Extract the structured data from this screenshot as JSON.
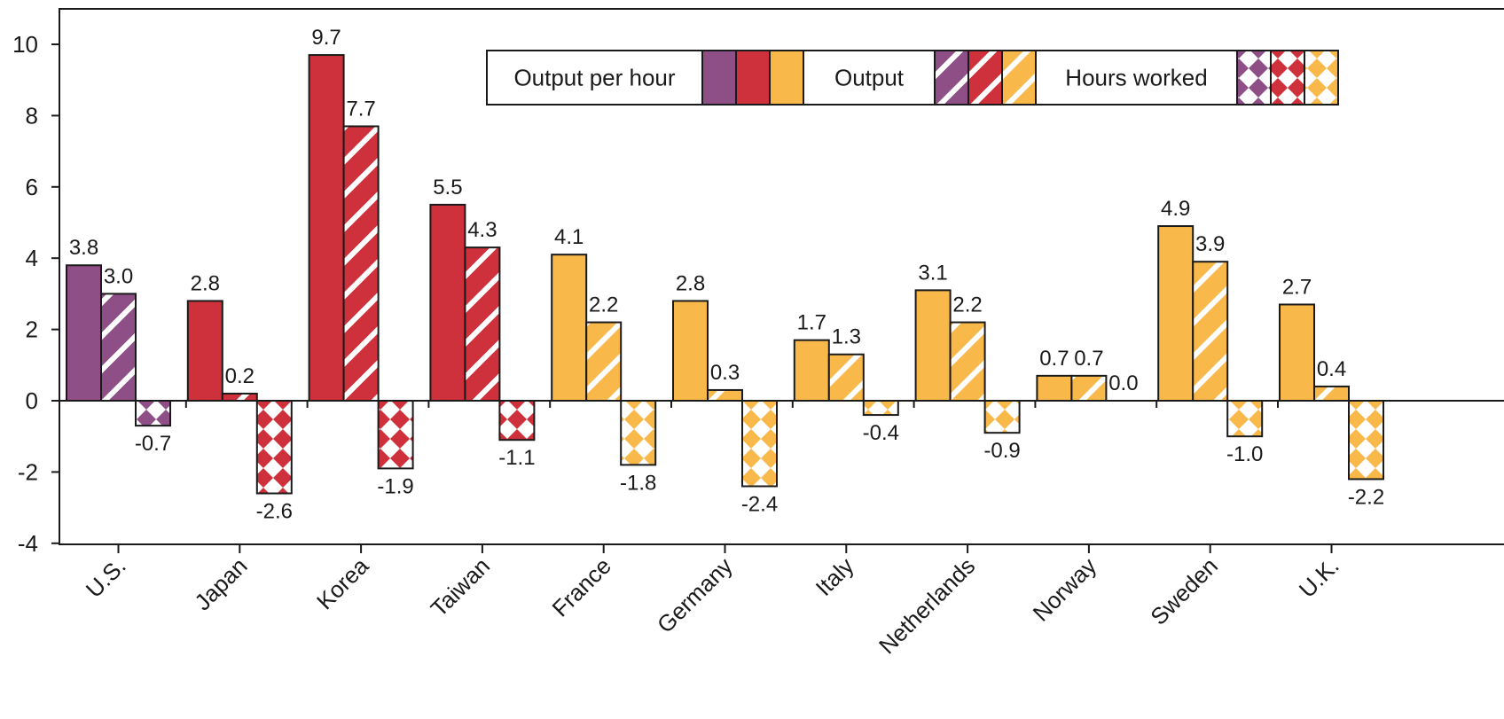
{
  "chart_data": {
    "type": "bar",
    "title": "",
    "xlabel": "",
    "ylabel": "",
    "ylim": [
      -4,
      10
    ],
    "yticks": [
      -4,
      -2,
      0,
      2,
      4,
      6,
      8,
      10
    ],
    "grid": false,
    "legend_position": "top-right",
    "categories": [
      "U.S.",
      "Japan",
      "Korea",
      "Taiwan",
      "France",
      "Germany",
      "Italy",
      "Netherlands",
      "Norway",
      "Sweden",
      "U.K."
    ],
    "category_colors": [
      "#8e4f86",
      "#cf313c",
      "#cf313c",
      "#cf313c",
      "#f9b84a",
      "#f9b84a",
      "#f9b84a",
      "#f9b84a",
      "#f9b84a",
      "#f9b84a",
      "#f9b84a"
    ],
    "series": [
      {
        "name": "Output per hour",
        "pattern": "solid",
        "values": [
          3.8,
          2.8,
          9.7,
          5.5,
          4.1,
          2.8,
          1.7,
          3.1,
          0.7,
          4.9,
          2.7
        ]
      },
      {
        "name": "Output",
        "pattern": "diagonal-stripes",
        "values": [
          3.0,
          0.2,
          7.7,
          4.3,
          2.2,
          0.3,
          1.3,
          2.2,
          0.7,
          3.9,
          0.4
        ]
      },
      {
        "name": "Hours worked",
        "pattern": "diamond-checker",
        "values": [
          -0.7,
          -2.6,
          -1.9,
          -1.1,
          -1.8,
          -2.4,
          -0.4,
          -0.9,
          0.0,
          -1.0,
          -2.2
        ]
      }
    ],
    "legend": {
      "labels": [
        "Output per hour",
        "Output",
        "Hours worked"
      ],
      "swatch_colors": [
        "#8e4f86",
        "#cf313c",
        "#f9b84a"
      ]
    },
    "colors": {
      "purple": "#8e4f86",
      "red": "#cf313c",
      "gold": "#f9b84a",
      "axis": "#1a1a1a"
    }
  }
}
